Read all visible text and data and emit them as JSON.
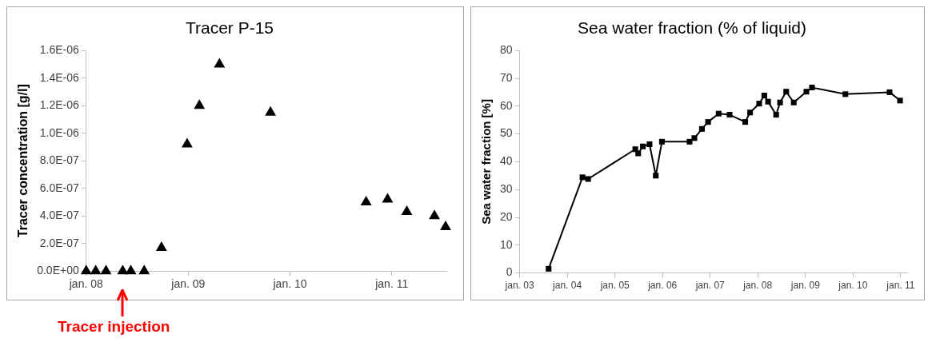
{
  "chart_data": [
    {
      "type": "scatter",
      "title": "Tracer P-15",
      "ylabel": "Tracer concentration [g/l]",
      "marker": "triangle",
      "grid": false,
      "legend": false,
      "x": [
        "2008-01-01",
        "2008-02-04",
        "2008-03-12",
        "2008-05-11",
        "2008-06-09",
        "2008-07-27",
        "2008-09-27",
        "2008-12-28",
        "2009-02-10",
        "2009-04-23",
        "2009-10-23",
        "2010-10-01",
        "2010-12-17",
        "2011-02-24",
        "2011-06-03",
        "2011-07-13"
      ],
      "series": [
        {
          "color": "#000000",
          "values": [
            0,
            0,
            0,
            0,
            0,
            0,
            1.7e-07,
            9.2e-07,
            1.2e-06,
            1.5e-06,
            1.15e-06,
            5e-07,
            5.2e-07,
            4.3e-07,
            4e-07,
            3.2e-07
          ]
        }
      ],
      "xlim": [
        "2008-01-01",
        "2011-07-16"
      ],
      "xticks": [
        {
          "value": "2008-01-01",
          "label": "jan. 08"
        },
        {
          "value": "2009-01-01",
          "label": "jan. 09"
        },
        {
          "value": "2010-01-01",
          "label": "jan. 10"
        },
        {
          "value": "2011-01-01",
          "label": "jan. 11"
        }
      ],
      "ylim": [
        0,
        1.6e-06
      ],
      "yticks": [
        {
          "value": 0,
          "label": "0.0E+00"
        },
        {
          "value": 2e-07,
          "label": "2.0E-07"
        },
        {
          "value": 4e-07,
          "label": "4.0E-07"
        },
        {
          "value": 6e-07,
          "label": "6.0E-07"
        },
        {
          "value": 8e-07,
          "label": "8.0E-07"
        },
        {
          "value": 1e-06,
          "label": "1.0E-06"
        },
        {
          "value": 1.2e-06,
          "label": "1.2E-06"
        },
        {
          "value": 1.4e-06,
          "label": "1.4E-06"
        },
        {
          "value": 1.6e-06,
          "label": "1.6E-06"
        }
      ],
      "annotations": [
        "Tracer injection"
      ]
    },
    {
      "type": "line",
      "title": "Sea water fraction (% of liquid)",
      "ylabel": "Sea water fraction [%]",
      "marker": "square",
      "line_style": "solid",
      "grid": false,
      "legend": false,
      "x": [
        "2003-08-11",
        "2004-04-27",
        "2004-06-09",
        "2005-06-06",
        "2005-06-28",
        "2005-08-03",
        "2005-09-23",
        "2005-11-10",
        "2005-12-27",
        "2006-07-27",
        "2006-09-02",
        "2006-10-30",
        "2006-12-16",
        "2007-03-07",
        "2007-05-30",
        "2007-09-27",
        "2007-11-03",
        "2008-01-12",
        "2008-02-20",
        "2008-03-20",
        "2008-05-21",
        "2008-06-20",
        "2008-08-06",
        "2008-10-03",
        "2009-01-08",
        "2009-02-20",
        "2009-11-03",
        "2010-10-08",
        "2010-12-27"
      ],
      "series": [
        {
          "color": "#000000",
          "values": [
            1.5,
            34.4,
            33.8,
            44.5,
            43,
            45.5,
            46.3,
            35,
            47.2,
            47.2,
            48.5,
            51.8,
            54.3,
            57.3,
            56.9,
            54.3,
            57.7,
            60.9,
            63.8,
            61.6,
            56.9,
            61.3,
            65.2,
            61.3,
            65.2,
            66.7,
            64.3,
            65,
            62
          ]
        }
      ],
      "xlim": [
        "2003-01-01",
        "2011-02-20"
      ],
      "xticks": [
        {
          "value": "2003-01-01",
          "label": "jan. 03"
        },
        {
          "value": "2004-01-01",
          "label": "jan. 04"
        },
        {
          "value": "2005-01-01",
          "label": "jan. 05"
        },
        {
          "value": "2006-01-01",
          "label": "jan. 06"
        },
        {
          "value": "2007-01-01",
          "label": "jan. 07"
        },
        {
          "value": "2008-01-01",
          "label": "jan. 08"
        },
        {
          "value": "2009-01-01",
          "label": "jan. 09"
        },
        {
          "value": "2010-01-01",
          "label": "jan. 10"
        },
        {
          "value": "2011-01-01",
          "label": "jan. 11"
        }
      ],
      "ylim": [
        0,
        80
      ],
      "yticks": [
        0,
        10,
        20,
        30,
        40,
        50,
        60,
        70,
        80
      ]
    }
  ]
}
